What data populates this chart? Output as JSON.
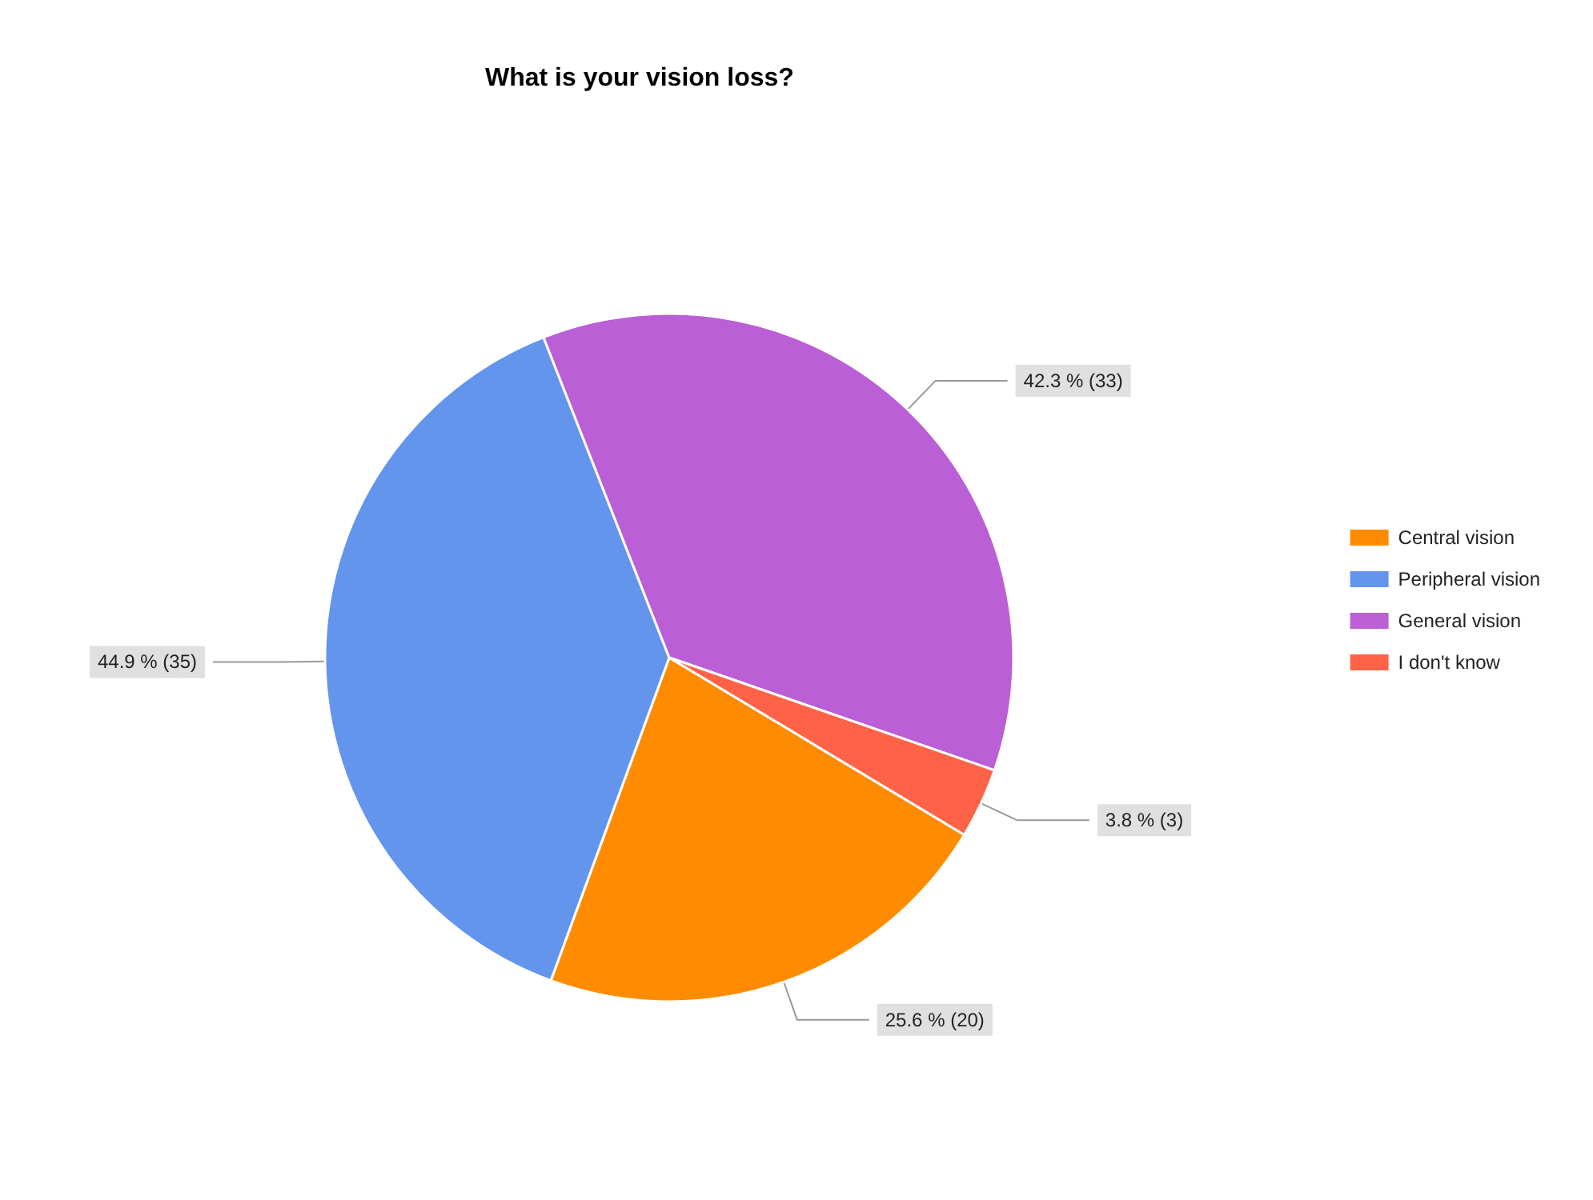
{
  "chart_data": {
    "type": "pie",
    "title": "What is your vision loss?",
    "categories": [
      "Central vision",
      "Peripheral vision",
      "General vision",
      "I don't know"
    ],
    "values": [
      20,
      35,
      33,
      3
    ],
    "value_labels": [
      "25.6 % (20)",
      "44.9 % (35)",
      "42.3 % (33)",
      "3.8 % (3)"
    ],
    "colors": [
      "#ff8c00",
      "#6495ed",
      "#ba5fd6",
      "#ff6347"
    ],
    "legend": "right"
  }
}
